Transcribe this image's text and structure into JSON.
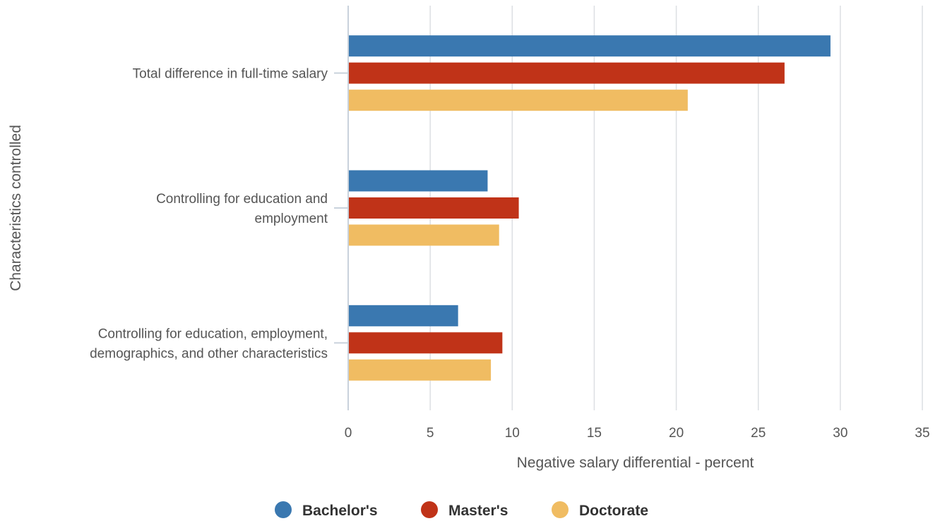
{
  "chart_data": {
    "type": "bar",
    "orientation": "horizontal",
    "categories": [
      [
        "Total difference in full-time salary"
      ],
      [
        "Controlling for education and",
        "employment"
      ],
      [
        "Controlling for education, employment,",
        "demographics, and other characteristics"
      ]
    ],
    "series": [
      {
        "name": "Bachelor's",
        "color": "#3a78b0",
        "values": [
          29.4,
          8.5,
          6.7
        ]
      },
      {
        "name": "Master's",
        "color": "#c03318",
        "values": [
          26.6,
          10.4,
          9.4
        ]
      },
      {
        "name": "Doctorate",
        "color": "#f0bc62",
        "values": [
          20.7,
          9.2,
          8.7
        ]
      }
    ],
    "xlabel": "Negative salary differential - percent",
    "ylabel": "Characteristics controlled",
    "xlim": [
      0,
      35
    ],
    "xticks": [
      0,
      5,
      10,
      15,
      20,
      25,
      30,
      35
    ],
    "grid": true,
    "legend": "bottom-center"
  }
}
